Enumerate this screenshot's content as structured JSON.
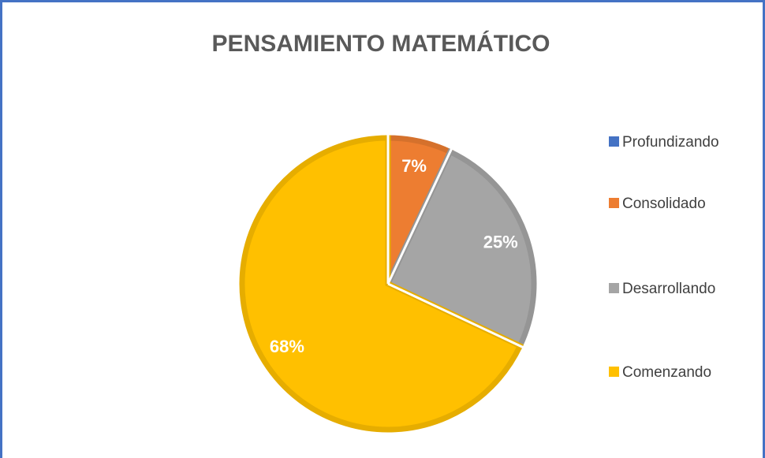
{
  "chart_data": {
    "type": "pie",
    "title": "PENSAMIENTO MATEMÁTICO",
    "categories": [
      "Profundizando",
      "Consolidado",
      "Desarrollando",
      "Comenzando"
    ],
    "values": [
      0,
      7,
      25,
      68
    ],
    "value_labels": [
      null,
      "7%",
      "25%",
      "68%"
    ],
    "colors": [
      "#4472c4",
      "#ed7d31",
      "#a5a5a5",
      "#ffc000"
    ],
    "legend": "right"
  }
}
